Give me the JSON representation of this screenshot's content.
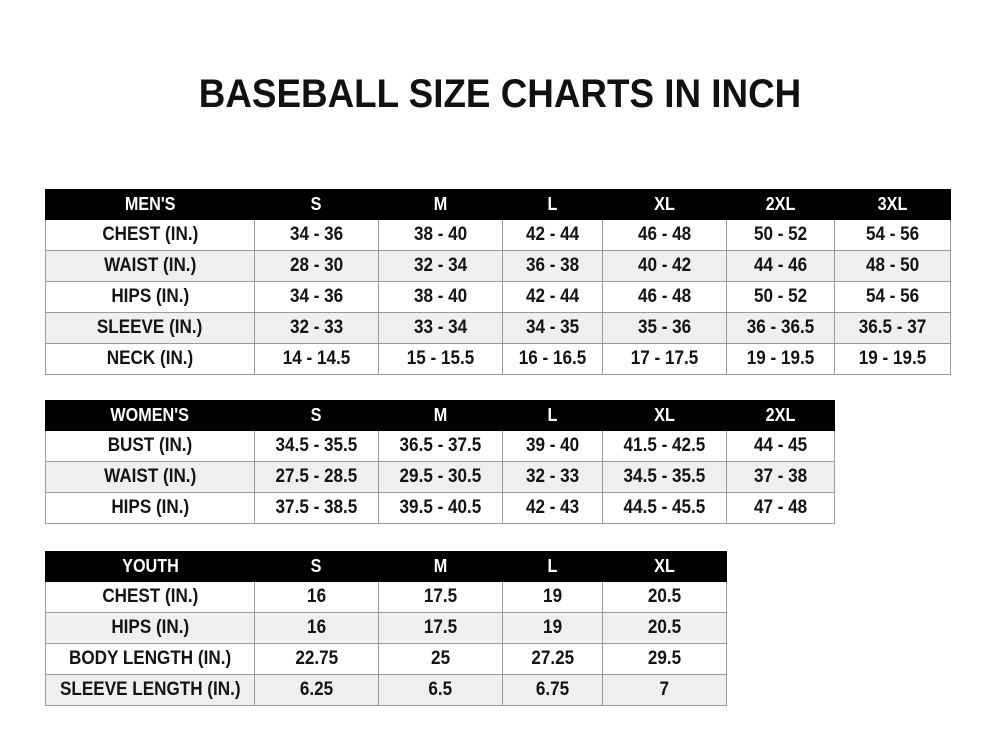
{
  "title": "BASEBALL SIZE CHARTS IN INCH",
  "tables": [
    {
      "id": "mens",
      "headers": [
        "MEN'S",
        "S",
        "M",
        "L",
        "XL",
        "2XL",
        "3XL"
      ],
      "rows": [
        [
          "CHEST (IN.)",
          "34 - 36",
          "38 - 40",
          "42 - 44",
          "46 - 48",
          "50 - 52",
          "54 - 56"
        ],
        [
          "WAIST (IN.)",
          "28 - 30",
          "32 - 34",
          "36 - 38",
          "40 - 42",
          "44 - 46",
          "48 - 50"
        ],
        [
          "HIPS (IN.)",
          "34 - 36",
          "38 - 40",
          "42 - 44",
          "46 - 48",
          "50 - 52",
          "54 - 56"
        ],
        [
          "SLEEVE (IN.)",
          "32 - 33",
          "33 - 34",
          "34 - 35",
          "35 - 36",
          "36 - 36.5",
          "36.5 - 37"
        ],
        [
          "NECK (IN.)",
          "14 - 14.5",
          "15 - 15.5",
          "16 - 16.5",
          "17 - 17.5",
          "19 - 19.5",
          "19 - 19.5"
        ]
      ]
    },
    {
      "id": "womens",
      "headers": [
        "WOMEN'S",
        "S",
        "M",
        "L",
        "XL",
        "2XL"
      ],
      "rows": [
        [
          "BUST (IN.)",
          "34.5 - 35.5",
          "36.5 - 37.5",
          "39 - 40",
          "41.5 - 42.5",
          "44 - 45"
        ],
        [
          "WAIST (IN.)",
          "27.5 - 28.5",
          "29.5 - 30.5",
          "32 - 33",
          "34.5 - 35.5",
          "37 - 38"
        ],
        [
          "HIPS (IN.)",
          "37.5 - 38.5",
          "39.5 - 40.5",
          "42 - 43",
          "44.5 - 45.5",
          "47 - 48"
        ]
      ]
    },
    {
      "id": "youth",
      "headers": [
        "YOUTH",
        "S",
        "M",
        "L",
        "XL"
      ],
      "rows": [
        [
          "CHEST (IN.)",
          "16",
          "17.5",
          "19",
          "20.5"
        ],
        [
          "HIPS (IN.)",
          "16",
          "17.5",
          "19",
          "20.5"
        ],
        [
          "BODY LENGTH (IN.)",
          "22.75",
          "25",
          "27.25",
          "29.5"
        ],
        [
          "SLEEVE LENGTH (IN.)",
          "6.25",
          "6.5",
          "6.75",
          "7"
        ]
      ]
    }
  ]
}
